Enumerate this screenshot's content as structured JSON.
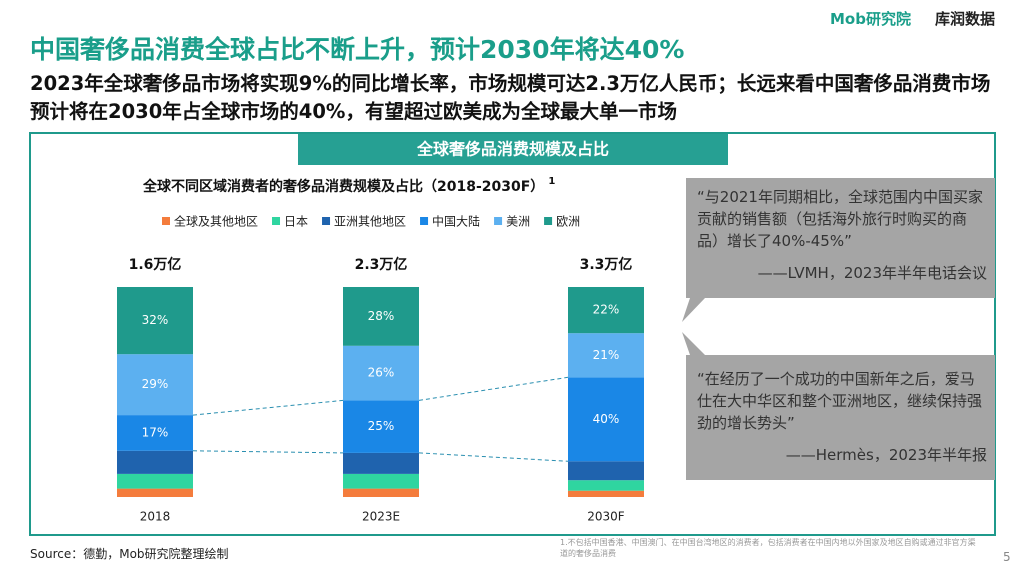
{
  "header": {
    "title": "中国奢侈品消费全球占比不断上升，预计2030年将达40%",
    "subtitle": "2023年全球奢侈品市场将实现9%的同比增长率，市场规模可达2.3万亿人民币；长远来看中国奢侈品消费市场预计将在2030年占全球市场的40%，有望超过欧美成为全球最大单一市场",
    "logo_left": "Mob研究院",
    "logo_right": "库润数据"
  },
  "section_title": "全球奢侈品消费规模及占比",
  "chart_data": {
    "type": "stacked-bar",
    "title": "全球不同区域消费者的奢侈品消费规模及占比（2018-2030F）",
    "title_note": "1",
    "categories": [
      "2018",
      "2023E",
      "2030F"
    ],
    "totals": [
      "1.6万亿",
      "2.3万亿",
      "3.3万亿"
    ],
    "series": [
      {
        "name": "全球及其他地区",
        "color": "#f47c3c",
        "values": [
          4,
          4,
          3
        ]
      },
      {
        "name": "日本",
        "color": "#2fd5a0",
        "values": [
          7,
          7,
          5
        ]
      },
      {
        "name": "亚洲其他地区",
        "color": "#1f63ae",
        "values": [
          11,
          10,
          9
        ]
      },
      {
        "name": "中国大陆",
        "color": "#1a87e6",
        "values": [
          17,
          25,
          40
        ],
        "value_labels": [
          "17%",
          "25%",
          "40%"
        ]
      },
      {
        "name": "美洲",
        "color": "#5cb0f0",
        "values": [
          29,
          26,
          21
        ],
        "value_labels": [
          "29%",
          "26%",
          "21%"
        ]
      },
      {
        "name": "欧洲",
        "color": "#1f9a8c",
        "values": [
          32,
          28,
          22
        ],
        "value_labels": [
          "32%",
          "28%",
          "22%"
        ]
      }
    ]
  },
  "quotes": [
    {
      "text": "“与2021年同期相比，全球范围内中国买家贡献的销售额（包括海外旅行时购买的商品）增长了40%-45%”",
      "source": "——LVMH，2023年半年电话会议"
    },
    {
      "text": "“在经历了一个成功的中国新年之后，爱马仕在大中华区和整个亚洲地区，继续保持强劲的增长势头”",
      "source": "——Hermès，2023年半年报"
    }
  ],
  "footer": {
    "source": "Source：德勤，Mob研究院整理绘制",
    "note": "1.不包括中国香港、中国澳门、在中国台湾地区的消费者，包括消费者在中国内地以外国家及地区自购或通过非官方渠道的奢侈品消费",
    "page": "5"
  }
}
